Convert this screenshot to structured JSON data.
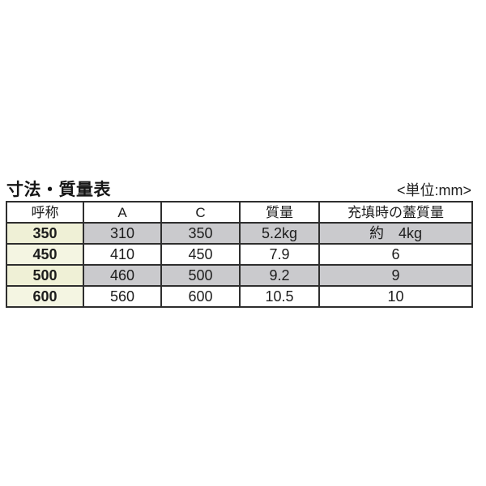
{
  "page": {
    "background_color": "#ffffff",
    "text_color": "#1c1c1c"
  },
  "title": "寸法・質量表",
  "unit_label": "<単位:mm>",
  "table": {
    "columns": [
      "呼称",
      "A",
      "C",
      "質量",
      "充填時の蓋質量"
    ],
    "rows": [
      {
        "name": "350",
        "a": "310",
        "c": "350",
        "mass": "5.2kg",
        "lid": "約　4kg",
        "striped": true
      },
      {
        "name": "450",
        "a": "410",
        "c": "450",
        "mass": "7.9",
        "lid": "6",
        "striped": false
      },
      {
        "name": "500",
        "a": "460",
        "c": "500",
        "mass": "9.2",
        "lid": "9",
        "striped": true
      },
      {
        "name": "600",
        "a": "560",
        "c": "600",
        "mass": "10.5",
        "lid": "10",
        "striped": false
      }
    ],
    "colors": {
      "border": "#2e2e2e",
      "stripe_gray": "#cacacd",
      "name_column_cream": "#f4f5e2",
      "name_column_cream_striped": "#eff0d6",
      "header_background": "#ffffff"
    }
  }
}
